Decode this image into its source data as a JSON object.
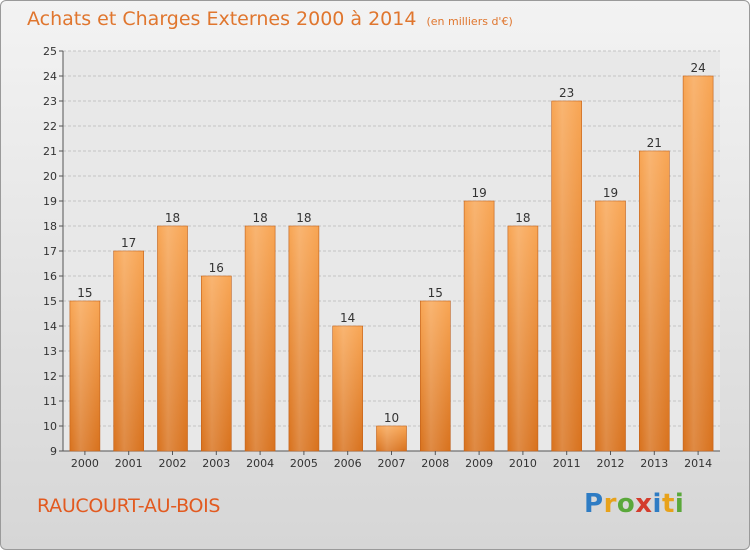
{
  "header": {
    "title": "Achats et Charges Externes 2000 à 2014",
    "unit": "(en milliers d'€)"
  },
  "footer": {
    "commune": "RAUCOURT-AU-BOIS",
    "logo": "Proxiti"
  },
  "chart_data": {
    "type": "bar",
    "title": "Achats et Charges Externes 2000 à 2014",
    "subtitle": "(en milliers d'€)",
    "xlabel": "",
    "ylabel": "",
    "categories": [
      "2000",
      "2001",
      "2002",
      "2003",
      "2004",
      "2005",
      "2006",
      "2007",
      "2008",
      "2009",
      "2010",
      "2011",
      "2012",
      "2013",
      "2014"
    ],
    "values": [
      15,
      17,
      18,
      16,
      18,
      18,
      14,
      10,
      15,
      19,
      18,
      23,
      19,
      21,
      24
    ],
    "ylim": [
      9,
      25
    ],
    "yticks": [
      9,
      10,
      11,
      12,
      13,
      14,
      15,
      16,
      17,
      18,
      19,
      20,
      21,
      22,
      23,
      24,
      25
    ],
    "grid": true,
    "bar_color": "#f0913a",
    "title_color": "#e0762e"
  }
}
